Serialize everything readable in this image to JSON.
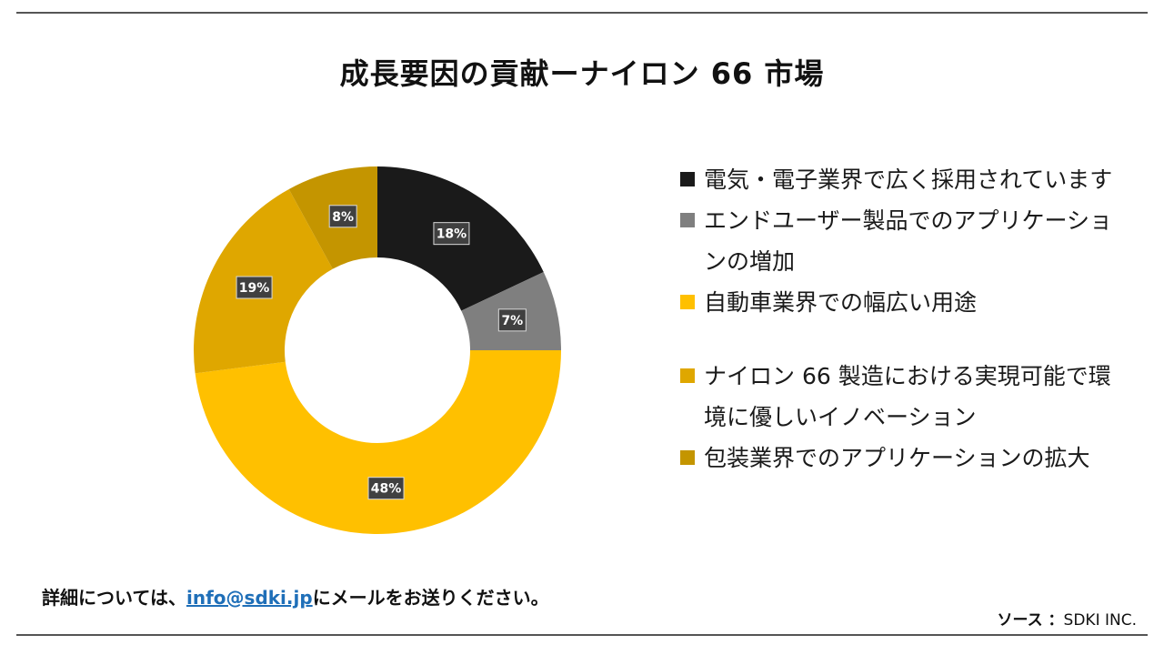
{
  "title": "成長要因の貢献ーナイロン 66 市場",
  "chart_data": {
    "type": "pie",
    "donut": true,
    "categories": [
      "電気・電子業界で広く採用されています",
      "エンドユーザー製品でのアプリケーションの増加",
      "自動車業界での幅広い用途",
      "ナイロン 66 製造における実現可能で環境に優しいイノベーション",
      "包装業界でのアプリケーションの拡大"
    ],
    "values": [
      18,
      7,
      48,
      19,
      8
    ],
    "labels": [
      "18%",
      "7%",
      "48%",
      "19%",
      "8%"
    ],
    "colors": [
      "#1a1a1a",
      "#7f7f7f",
      "#ffc000",
      "#dfa700",
      "#c49500"
    ],
    "legend_position": "right"
  },
  "legend": [
    {
      "label": "電気・電子業界で広く採用されています",
      "color": "#1a1a1a"
    },
    {
      "label": "エンドユーザー製品でのアプリケーションの増加",
      "color": "#7f7f7f"
    },
    {
      "label": "自動車業界での幅広い用途",
      "color": "#ffc000"
    },
    {
      "label": "ナイロン 66 製造における実現可能で環境に優しいイノベーション",
      "color": "#dfa700"
    },
    {
      "label": "包装業界でのアプリケーションの拡大",
      "color": "#c49500"
    }
  ],
  "contact": {
    "prefix": "詳細については、",
    "email": "info@sdki.jp",
    "suffix": "にメールをお送りください。"
  },
  "source": {
    "label": "ソース ：",
    "value": "SDKI INC."
  }
}
